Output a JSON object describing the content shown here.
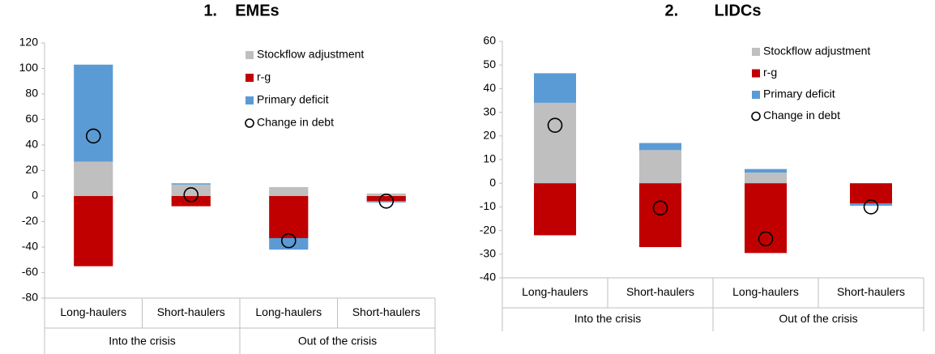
{
  "chart_data": [
    {
      "type": "stacked-bar",
      "title": "1.    EMEs",
      "categories": [
        "Long-haulers",
        "Short-haulers",
        "Long-haulers",
        "Short-haulers"
      ],
      "groups": [
        {
          "label": "Into the crisis",
          "span": 2
        },
        {
          "label": "Out of the crisis",
          "span": 2
        }
      ],
      "series": [
        {
          "name": "Stockflow adjustment",
          "color": "#bfbfbf",
          "values": [
            27,
            9,
            7,
            2
          ]
        },
        {
          "name": "r-g",
          "color": "#c00000",
          "values": [
            -55,
            -8,
            -33,
            -4
          ]
        },
        {
          "name": "Primary deficit",
          "color": "#5b9bd5",
          "values": [
            76,
            1,
            -9,
            -1
          ]
        }
      ],
      "markers": {
        "name": "Change in debt",
        "values": [
          47,
          1,
          -35,
          -4
        ]
      },
      "ylim": [
        -80,
        120
      ],
      "yticks": [
        -80,
        -60,
        -40,
        -20,
        0,
        20,
        40,
        60,
        80,
        100,
        120
      ]
    },
    {
      "type": "stacked-bar",
      "title": "2.        LIDCs",
      "categories": [
        "Long-haulers",
        "Short-haulers",
        "Long-haulers",
        "Short-haulers"
      ],
      "groups": [
        {
          "label": "Into the crisis",
          "span": 2
        },
        {
          "label": "Out of the crisis",
          "span": 2
        }
      ],
      "series": [
        {
          "name": "Stockflow adjustment",
          "color": "#bfbfbf",
          "values": [
            34,
            14,
            4.5,
            0
          ]
        },
        {
          "name": "r-g",
          "color": "#c00000",
          "values": [
            -22,
            -27,
            -29.5,
            -8.5
          ]
        },
        {
          "name": "Primary deficit",
          "color": "#5b9bd5",
          "values": [
            12.5,
            3,
            1.5,
            -1
          ]
        }
      ],
      "markers": {
        "name": "Change in debt",
        "values": [
          24.5,
          -10.5,
          -23.5,
          -10
        ]
      },
      "ylim": [
        -40,
        60
      ],
      "yticks": [
        -40,
        -30,
        -20,
        -10,
        0,
        10,
        20,
        30,
        40,
        50,
        60
      ]
    }
  ]
}
